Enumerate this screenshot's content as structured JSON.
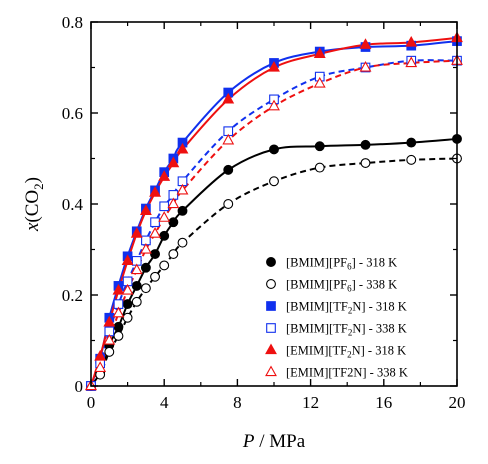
{
  "chart_data": {
    "type": "scatter",
    "title": "",
    "xlabel_italic": "P",
    "xlabel_rest": " / MPa",
    "ylabel_italic": "x",
    "ylabel_open": "(CO",
    "ylabel_sub": "2",
    "ylabel_close": ")",
    "xlim": [
      0,
      20
    ],
    "ylim": [
      0,
      0.8
    ],
    "xticks": [
      0,
      4,
      8,
      12,
      16,
      20
    ],
    "xtick_labels": [
      "0",
      "4",
      "8",
      "12",
      "16",
      "20"
    ],
    "yticks": [
      0,
      0.2,
      0.4,
      0.6,
      0.8
    ],
    "ytick_labels": [
      "0",
      "0.2",
      "0.4",
      "0.6",
      "0.8"
    ],
    "grid": false,
    "legend_position": "bottom-right",
    "series": [
      {
        "name": "[BMIM][PF6] - 318 K",
        "legend_parts": [
          "[BMIM][PF",
          "6",
          "] - 318 K"
        ],
        "marker": "circle",
        "filled": true,
        "color": "#000000",
        "line": "solid",
        "x": [
          0,
          0.5,
          1.0,
          1.5,
          2.0,
          2.5,
          3.0,
          3.5,
          4.0,
          4.5,
          5.0,
          7.5,
          10.0,
          12.5,
          15.0,
          17.5,
          20.0
        ],
        "y": [
          0,
          0.03,
          0.09,
          0.13,
          0.18,
          0.22,
          0.26,
          0.29,
          0.33,
          0.36,
          0.385,
          0.475,
          0.52,
          0.527,
          0.53,
          0.535,
          0.543
        ]
      },
      {
        "name": "[BMIM][PF6] - 338 K",
        "legend_parts": [
          "[BMIM][PF",
          "6",
          "] - 338 K"
        ],
        "marker": "circle",
        "filled": false,
        "color": "#000000",
        "line": "dashed",
        "x": [
          0,
          0.5,
          1.0,
          1.5,
          2.0,
          2.5,
          3.0,
          3.5,
          4.0,
          4.5,
          5.0,
          7.5,
          10.0,
          12.5,
          15.0,
          17.5,
          20.0
        ],
        "y": [
          0,
          0.025,
          0.075,
          0.11,
          0.15,
          0.185,
          0.215,
          0.24,
          0.265,
          0.29,
          0.315,
          0.4,
          0.45,
          0.48,
          0.49,
          0.497,
          0.5
        ]
      },
      {
        "name": "[BMIM][TF2N] - 318 K",
        "legend_parts": [
          "[BMIM][TF",
          "2",
          "N] - 318 K"
        ],
        "marker": "square",
        "filled": true,
        "color": "#1030ee",
        "line": "solid",
        "x": [
          0,
          0.5,
          1.0,
          1.5,
          2.0,
          2.5,
          3.0,
          3.5,
          4.0,
          4.5,
          5.0,
          7.5,
          10.0,
          12.5,
          15.0,
          17.5,
          20.0
        ],
        "y": [
          0,
          0.06,
          0.15,
          0.22,
          0.285,
          0.34,
          0.39,
          0.43,
          0.47,
          0.5,
          0.535,
          0.645,
          0.71,
          0.735,
          0.745,
          0.748,
          0.758
        ]
      },
      {
        "name": "[BMIM][TF2N] - 338 K",
        "legend_parts": [
          "[BMIM][TF",
          "2",
          "N] - 338 K"
        ],
        "marker": "square",
        "filled": false,
        "color": "#1030ee",
        "line": "dashed",
        "x": [
          0,
          0.5,
          1.0,
          1.5,
          2.0,
          2.5,
          3.0,
          3.5,
          4.0,
          4.5,
          5.0,
          7.5,
          10.0,
          12.5,
          15.0,
          17.5,
          20.0
        ],
        "y": [
          0,
          0.05,
          0.12,
          0.18,
          0.23,
          0.275,
          0.32,
          0.36,
          0.395,
          0.42,
          0.45,
          0.56,
          0.63,
          0.68,
          0.7,
          0.715,
          0.715
        ]
      },
      {
        "name": "[EMIM][TF2N] - 318 K",
        "legend_parts": [
          "[EMIM][TF",
          "2",
          "N] - 318 K"
        ],
        "marker": "triangle",
        "filled": true,
        "color": "#ee1010",
        "line": "solid",
        "x": [
          0,
          0.5,
          1.0,
          1.5,
          2.0,
          2.5,
          3.0,
          3.5,
          4.0,
          4.5,
          5.0,
          7.5,
          10.0,
          12.5,
          15.0,
          17.5,
          20.0
        ],
        "y": [
          0,
          0.065,
          0.14,
          0.21,
          0.275,
          0.335,
          0.385,
          0.425,
          0.46,
          0.49,
          0.52,
          0.63,
          0.7,
          0.73,
          0.75,
          0.755,
          0.765
        ]
      },
      {
        "name": "[EMIM][TF2N] - 338 K",
        "legend_parts": [
          "[EMIM][TF2N] - 338 K"
        ],
        "marker": "triangle",
        "filled": false,
        "color": "#ee1010",
        "line": "dashed",
        "x": [
          0,
          0.5,
          1.0,
          1.5,
          2.0,
          2.5,
          3.0,
          3.5,
          4.0,
          4.5,
          5.0,
          7.5,
          10.0,
          12.5,
          15.0,
          17.5,
          20.0
        ],
        "y": [
          0,
          0.04,
          0.1,
          0.16,
          0.21,
          0.255,
          0.3,
          0.335,
          0.37,
          0.4,
          0.43,
          0.54,
          0.615,
          0.665,
          0.7,
          0.71,
          0.715
        ]
      }
    ]
  }
}
